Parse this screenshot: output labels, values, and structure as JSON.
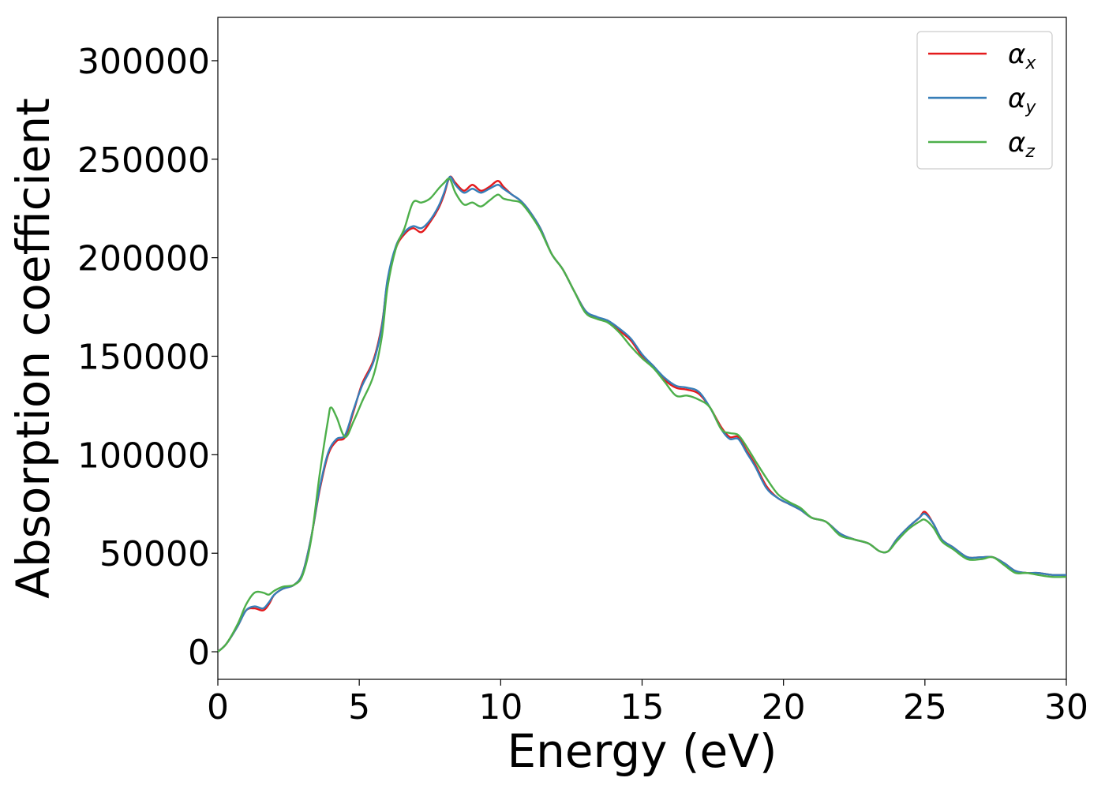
{
  "chart_data": {
    "type": "line",
    "xlabel": "Energy (eV)",
    "ylabel": "Absorption coefficient",
    "xlim": [
      0,
      30
    ],
    "ylim": [
      -14000,
      322000
    ],
    "xticks": [
      0,
      5,
      10,
      15,
      20,
      25,
      30
    ],
    "yticks": [
      0,
      50000,
      100000,
      150000,
      200000,
      250000,
      300000
    ],
    "grid": false,
    "legend_position": "top-right",
    "series": [
      {
        "name": "αx",
        "legend_main": "α",
        "legend_sub": "x",
        "color": "#e41a1c",
        "x": [
          0,
          0.3,
          0.7,
          1.0,
          1.3,
          1.6,
          1.8,
          2.0,
          2.3,
          2.7,
          3.0,
          3.3,
          3.6,
          3.9,
          4.2,
          4.5,
          4.8,
          5.1,
          5.5,
          5.8,
          6.0,
          6.3,
          6.6,
          6.9,
          7.2,
          7.5,
          7.8,
          8.0,
          8.2,
          8.4,
          8.7,
          9.0,
          9.3,
          9.6,
          9.9,
          10.1,
          10.4,
          10.7,
          11.0,
          11.4,
          11.8,
          12.2,
          12.6,
          13.0,
          13.4,
          13.8,
          14.2,
          14.6,
          15.0,
          15.4,
          15.8,
          16.2,
          16.6,
          17.0,
          17.4,
          17.8,
          18.1,
          18.4,
          18.7,
          19.0,
          19.4,
          19.8,
          20.2,
          20.6,
          21.0,
          21.5,
          22.0,
          22.5,
          23.0,
          23.4,
          23.7,
          24.0,
          24.4,
          24.8,
          25.0,
          25.3,
          25.6,
          26.0,
          26.5,
          27.0,
          27.4,
          27.8,
          28.2,
          28.6,
          29.0,
          29.5,
          30.0
        ],
        "values": [
          0,
          4000,
          13000,
          21000,
          22000,
          21000,
          24000,
          29000,
          32000,
          34000,
          40000,
          58000,
          82000,
          100000,
          107000,
          109000,
          122000,
          136000,
          148000,
          166000,
          188000,
          205000,
          212000,
          215000,
          213000,
          218000,
          225000,
          232000,
          241000,
          238000,
          234000,
          237000,
          234000,
          236000,
          239000,
          236000,
          232000,
          229000,
          224000,
          215000,
          202000,
          194000,
          183000,
          173000,
          169000,
          168000,
          163000,
          158000,
          150000,
          145000,
          138000,
          134000,
          133000,
          131000,
          124000,
          114000,
          109000,
          109000,
          102000,
          95000,
          84000,
          78000,
          75000,
          72000,
          68000,
          66000,
          60000,
          57000,
          55000,
          51000,
          51000,
          57000,
          63000,
          68000,
          71000,
          65000,
          57000,
          53000,
          48000,
          48000,
          48000,
          45000,
          41000,
          40000,
          40000,
          39000,
          39000
        ]
      },
      {
        "name": "αy",
        "legend_main": "α",
        "legend_sub": "y",
        "color": "#377eb8",
        "x": [
          0,
          0.3,
          0.7,
          1.0,
          1.3,
          1.6,
          1.8,
          2.0,
          2.3,
          2.7,
          3.0,
          3.3,
          3.6,
          3.9,
          4.2,
          4.5,
          4.8,
          5.1,
          5.5,
          5.8,
          6.0,
          6.3,
          6.6,
          6.9,
          7.2,
          7.5,
          7.8,
          8.0,
          8.2,
          8.4,
          8.7,
          9.0,
          9.3,
          9.6,
          9.9,
          10.1,
          10.4,
          10.7,
          11.0,
          11.4,
          11.8,
          12.2,
          12.6,
          13.0,
          13.4,
          13.8,
          14.2,
          14.6,
          15.0,
          15.4,
          15.8,
          16.2,
          16.6,
          17.0,
          17.4,
          17.8,
          18.1,
          18.4,
          18.7,
          19.0,
          19.4,
          19.8,
          20.2,
          20.6,
          21.0,
          21.5,
          22.0,
          22.5,
          23.0,
          23.4,
          23.7,
          24.0,
          24.4,
          24.8,
          25.0,
          25.3,
          25.6,
          26.0,
          26.5,
          27.0,
          27.4,
          27.8,
          28.2,
          28.6,
          29.0,
          29.5,
          30.0
        ],
        "values": [
          0,
          4000,
          13000,
          21000,
          23000,
          22000,
          25000,
          29000,
          32000,
          34000,
          40000,
          58000,
          83000,
          101000,
          108000,
          110000,
          123000,
          135000,
          147000,
          165000,
          189000,
          206000,
          213000,
          216000,
          215000,
          219000,
          226000,
          233000,
          241000,
          237000,
          233000,
          235000,
          233000,
          235000,
          237000,
          235000,
          232000,
          229000,
          224000,
          215000,
          202000,
          194000,
          183000,
          173000,
          170000,
          168000,
          164000,
          159000,
          151000,
          145000,
          139000,
          135000,
          134000,
          132000,
          124000,
          113000,
          108000,
          108000,
          101000,
          94000,
          83000,
          78000,
          75000,
          72000,
          68000,
          66000,
          60000,
          57000,
          55000,
          51000,
          51000,
          57000,
          63000,
          68000,
          70000,
          65000,
          57000,
          53000,
          48000,
          48000,
          48000,
          45000,
          41000,
          40000,
          40000,
          39000,
          39000
        ]
      },
      {
        "name": "αz",
        "legend_main": "α",
        "legend_sub": "z",
        "color": "#4daf4a",
        "x": [
          0,
          0.3,
          0.7,
          1.0,
          1.3,
          1.6,
          1.8,
          2.0,
          2.3,
          2.7,
          3.0,
          3.3,
          3.6,
          3.9,
          4.0,
          4.2,
          4.5,
          4.8,
          5.1,
          5.5,
          5.8,
          6.0,
          6.3,
          6.6,
          6.9,
          7.2,
          7.5,
          7.8,
          8.0,
          8.2,
          8.4,
          8.7,
          9.0,
          9.3,
          9.6,
          9.9,
          10.1,
          10.4,
          10.7,
          11.0,
          11.4,
          11.8,
          12.2,
          12.6,
          13.0,
          13.4,
          13.8,
          14.2,
          14.6,
          15.0,
          15.4,
          15.8,
          16.2,
          16.6,
          17.0,
          17.4,
          17.8,
          18.1,
          18.4,
          18.7,
          19.0,
          19.4,
          19.8,
          20.2,
          20.6,
          21.0,
          21.5,
          22.0,
          22.5,
          23.0,
          23.4,
          23.7,
          24.0,
          24.4,
          24.8,
          25.0,
          25.3,
          25.6,
          26.0,
          26.5,
          27.0,
          27.4,
          27.8,
          28.2,
          28.6,
          29.0,
          29.5,
          30.0
        ],
        "values": [
          0,
          4000,
          14000,
          24000,
          30000,
          30000,
          29000,
          31000,
          33000,
          34000,
          39000,
          57000,
          90000,
          118000,
          124000,
          119000,
          109000,
          117000,
          127000,
          140000,
          160000,
          185000,
          205000,
          215000,
          228000,
          228000,
          230000,
          235000,
          238000,
          240000,
          233000,
          227000,
          228000,
          226000,
          229000,
          232000,
          230000,
          229000,
          228000,
          223000,
          214000,
          202000,
          194000,
          183000,
          172000,
          169000,
          167000,
          162000,
          155000,
          149000,
          144000,
          137000,
          130000,
          130000,
          128000,
          124000,
          113000,
          111000,
          110000,
          104000,
          97000,
          88000,
          80000,
          76000,
          73000,
          68000,
          66000,
          59000,
          57000,
          55000,
          51000,
          51000,
          56000,
          62000,
          66000,
          67000,
          63000,
          56000,
          52000,
          47000,
          47000,
          48000,
          44000,
          40000,
          40000,
          39000,
          38000,
          38000
        ]
      }
    ]
  }
}
